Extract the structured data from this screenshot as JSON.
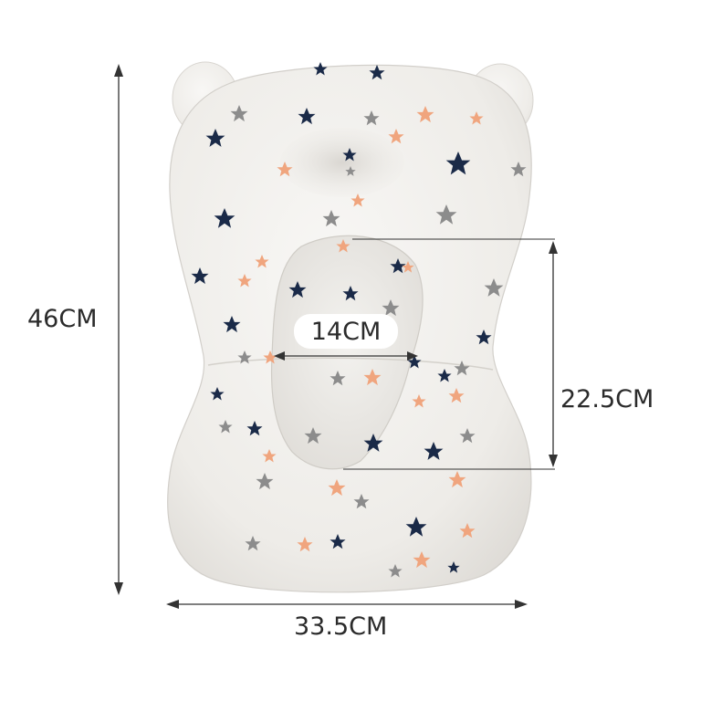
{
  "product": {
    "name": "baby-bath-support-cushion",
    "body_color": "#efedea",
    "star_colors": {
      "navy": "#1a2a48",
      "gray": "#8c8c8c",
      "peach": "#f0a57e"
    }
  },
  "dimensions": {
    "overall_height": "46CM",
    "overall_width": "33.5CM",
    "inner_width": "14CM",
    "inner_height": "22.5CM"
  },
  "annotation_color": "#333333"
}
